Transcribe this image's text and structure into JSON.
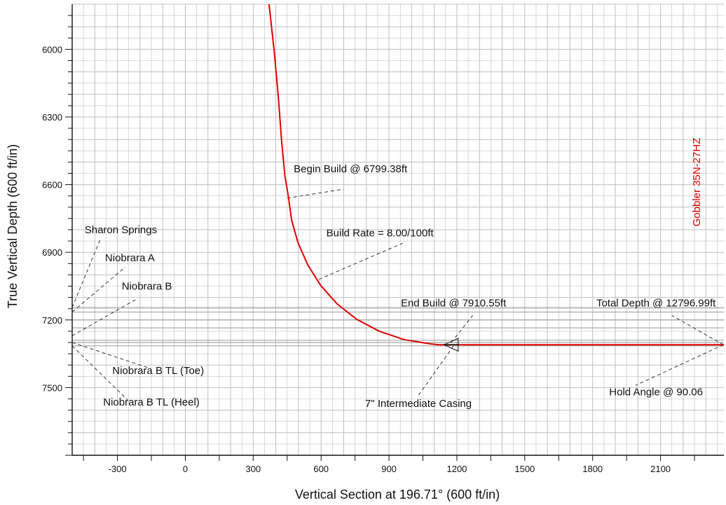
{
  "chart_data": {
    "type": "line",
    "xlabel": "Vertical Section at 196.71° (600 ft/in)",
    "ylabel": "True Vertical Depth (600 ft/in)",
    "x_ticks": [
      -300,
      0,
      300,
      600,
      900,
      1200,
      1500,
      1800,
      2100
    ],
    "y_ticks": [
      6000,
      6300,
      6600,
      6900,
      7200,
      7500
    ],
    "xlim": [
      -500,
      2380
    ],
    "ylim": [
      5800,
      7800
    ],
    "grid": true,
    "well_name": "Gobbler 35N-27HZ",
    "colors": {
      "well_path": "#e00000",
      "grid": "#bfbfbf",
      "axis": "#111111"
    },
    "series": [
      {
        "name": "Gobbler 35N-27HZ",
        "points": [
          [
            370,
            5800
          ],
          [
            392,
            6000
          ],
          [
            410,
            6200
          ],
          [
            425,
            6400
          ],
          [
            440,
            6560
          ],
          [
            455,
            6651
          ],
          [
            470,
            6758
          ],
          [
            498,
            6858
          ],
          [
            541,
            6956
          ],
          [
            598,
            7047
          ],
          [
            670,
            7128
          ],
          [
            757,
            7197
          ],
          [
            857,
            7250
          ],
          [
            966,
            7287
          ],
          [
            1081,
            7306
          ],
          [
            1120,
            7310
          ],
          [
            1200,
            7310
          ],
          [
            1600,
            7310
          ],
          [
            2000,
            7310
          ],
          [
            2380,
            7310
          ]
        ]
      }
    ],
    "formation_tops": [
      7145,
      7165,
      7200,
      7235,
      7290,
      7300,
      7315
    ],
    "casing_symbols": [
      {
        "x": 1175,
        "y": 7300
      },
      {
        "x": 1175,
        "y": 7320
      }
    ],
    "annotations": [
      {
        "text": "Begin Build @ 6799.38ft",
        "label": [
          730,
          6545
        ],
        "leader": [
          [
            450,
            6660
          ],
          [
            700,
            6620
          ]
        ]
      },
      {
        "text": "Build Rate = 8.00/100ft",
        "label": [
          860,
          6830
        ],
        "leader": [
          [
            590,
            7020
          ],
          [
            960,
            6860
          ]
        ]
      },
      {
        "text": "End Build @ 7910.55ft",
        "label": [
          1185,
          7140
        ],
        "leader": [
          [
            1175,
            7300
          ],
          [
            1270,
            7180
          ]
        ]
      },
      {
        "text": "Total Depth @ 12796.99ft",
        "label": [
          2080,
          7140
        ],
        "leader": [
          [
            2378,
            7310
          ],
          [
            2150,
            7180
          ]
        ]
      },
      {
        "text": "Hold Angle @ 90.06",
        "label": [
          2080,
          7535
        ],
        "leader": [
          [
            2378,
            7310
          ],
          [
            1990,
            7490
          ]
        ]
      },
      {
        "text": "7\" Intermediate Casing",
        "label": [
          1030,
          7585
        ],
        "leader": [
          [
            1185,
            7315
          ],
          [
            1030,
            7535
          ]
        ]
      },
      {
        "text": "Sharon Springs",
        "label": [
          -285,
          6815
        ],
        "leader": [
          [
            -500,
            7145
          ],
          [
            -375,
            6840
          ]
        ]
      },
      {
        "text": "Niobrara A",
        "label": [
          -245,
          6940
        ],
        "leader": [
          [
            -500,
            7165
          ],
          [
            -265,
            6965
          ]
        ]
      },
      {
        "text": "Niobrara B",
        "label": [
          -170,
          7065
        ],
        "leader": [
          [
            -500,
            7270
          ],
          [
            -220,
            7110
          ]
        ]
      },
      {
        "text": "Niobrara B TL (Toe)",
        "label": [
          -120,
          7440
        ],
        "leader": [
          [
            -500,
            7300
          ],
          [
            -155,
            7415
          ]
        ]
      },
      {
        "text": "Niobrara B TL (Heel)",
        "label": [
          -150,
          7580
        ],
        "leader": [
          [
            -500,
            7315
          ],
          [
            -255,
            7555
          ]
        ]
      }
    ]
  }
}
